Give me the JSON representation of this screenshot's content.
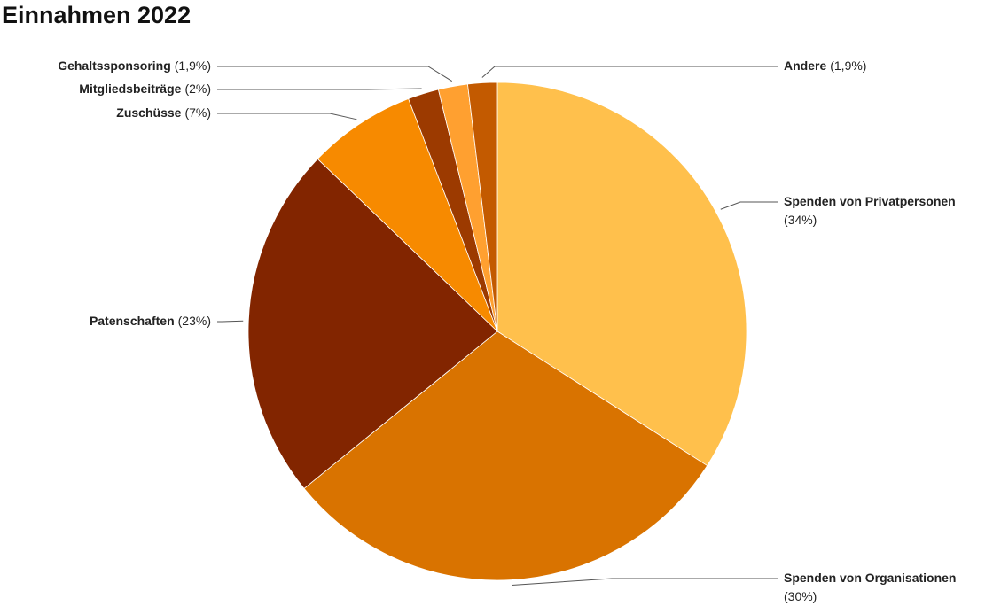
{
  "chart_data": {
    "type": "pie",
    "title": "Einnahmen 2022",
    "categories": [
      "Spenden von Privatpersonen",
      "Spenden von Organisationen",
      "Patenschaften",
      "Zuschüsse",
      "Mitgliedsbeiträge",
      "Gehaltssponsoring",
      "Andere"
    ],
    "values": [
      34,
      30,
      23,
      7,
      2,
      1.9,
      1.9
    ],
    "value_labels": [
      "(34%)",
      "(30%)",
      "(23%)",
      "(7%)",
      "(2%)",
      "(1,9%)",
      "(1,9%)"
    ],
    "colors": [
      "#ffc04c",
      "#d97300",
      "#822500",
      "#f78a00",
      "#9c3a00",
      "#ffa030",
      "#c35a00"
    ]
  }
}
